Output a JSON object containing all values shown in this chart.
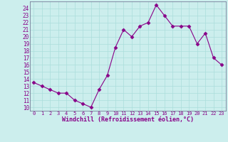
{
  "x": [
    0,
    1,
    2,
    3,
    4,
    5,
    6,
    7,
    8,
    9,
    10,
    11,
    12,
    13,
    14,
    15,
    16,
    17,
    18,
    19,
    20,
    21,
    22,
    23
  ],
  "y": [
    13.5,
    13.0,
    12.5,
    12.0,
    12.0,
    11.0,
    10.5,
    10.0,
    12.5,
    14.5,
    18.5,
    21.0,
    20.0,
    21.5,
    22.0,
    24.5,
    23.0,
    21.5,
    21.5,
    21.5,
    19.0,
    20.5,
    17.0,
    16.0
  ],
  "line_color": "#880088",
  "marker": "D",
  "markersize": 2.5,
  "bg_color": "#cceeed",
  "plot_bg": "#cceeed",
  "grid_color": "#aadddb",
  "xlabel": "Windchill (Refroidissement éolien,°C)",
  "ylabel_ticks": [
    10,
    11,
    12,
    13,
    14,
    15,
    16,
    17,
    18,
    19,
    20,
    21,
    22,
    23,
    24
  ],
  "xlim": [
    -0.5,
    23.5
  ],
  "ylim": [
    9.5,
    25.0
  ],
  "tick_color": "#880088",
  "label_color": "#880088",
  "border_color": "#666688"
}
